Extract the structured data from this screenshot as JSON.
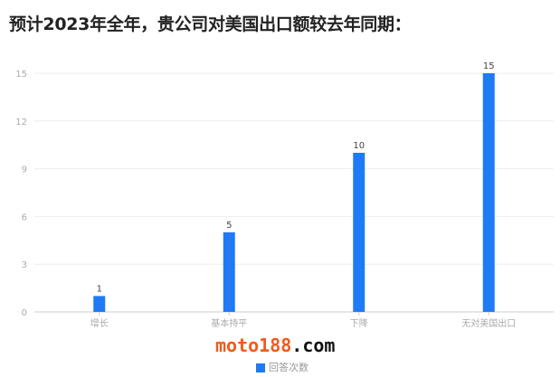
{
  "title": "预计2023年全年，贵公司对美国出口额较去年同期：",
  "chart_data": {
    "type": "bar",
    "categories": [
      "增长",
      "基本持平",
      "下降",
      "无对美国出口"
    ],
    "series": [
      {
        "name": "回答次数",
        "values": [
          1,
          5,
          10,
          15
        ]
      }
    ],
    "ylim": [
      0,
      15
    ],
    "yticks": [
      0,
      3,
      6,
      9,
      12,
      15
    ],
    "grid": true,
    "legend": "bottom",
    "color": "#1f7af5"
  },
  "watermark": {
    "part1": "moto188",
    "part2": ".com"
  }
}
